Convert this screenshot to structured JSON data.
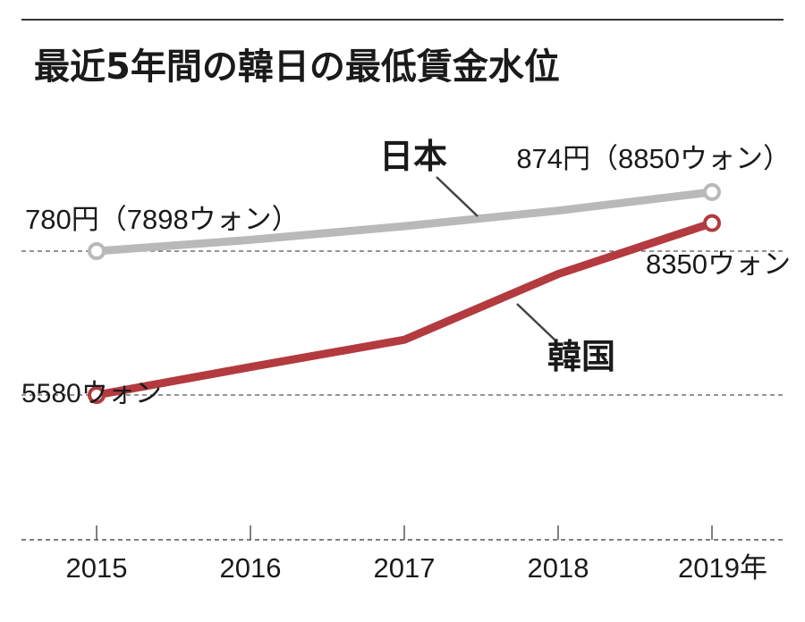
{
  "chart_data": {
    "type": "line",
    "title": "最近5年間の韓日の最低賃金水位",
    "categories": [
      "2015",
      "2016",
      "2017",
      "2018",
      "2019年"
    ],
    "ylim": [
      4000,
      10000
    ],
    "grid": "dashed reference lines at start values and baseline",
    "series": [
      {
        "name": "日本",
        "color": "#b9b9b9",
        "values": [
          7898,
          8080,
          8300,
          8550,
          8850
        ],
        "start_label": "780円（7898ウォン）",
        "end_label": "874円（8850ウォン）"
      },
      {
        "name": "韓国",
        "color": "#b33a3f",
        "values": [
          5580,
          6030,
          6470,
          7530,
          8350
        ],
        "start_label": "5580ウォン",
        "end_label": "8350ウォン"
      }
    ]
  }
}
